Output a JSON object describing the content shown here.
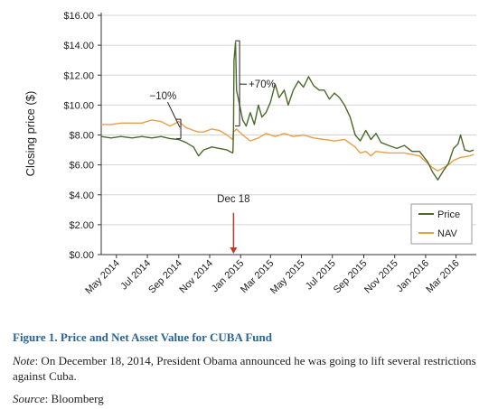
{
  "chart_data": {
    "type": "line",
    "title": "",
    "xlabel": "",
    "ylabel": "Closing price ($)",
    "ylim": [
      0,
      16
    ],
    "grid": "horizontal",
    "legend_position": "lower-right",
    "y_ticks": [
      "$0.00",
      "$2.00",
      "$4.00",
      "$6.00",
      "$8.00",
      "$10.00",
      "$12.00",
      "$14.00",
      "$16.00"
    ],
    "x_ticks": [
      {
        "label": "May 2014",
        "x": "2014-05-01"
      },
      {
        "label": "Jul 2014",
        "x": "2014-07-01"
      },
      {
        "label": "Sep 2014",
        "x": "2014-09-01"
      },
      {
        "label": "Nov 2014",
        "x": "2014-11-01"
      },
      {
        "label": "Jan 2015",
        "x": "2015-01-01"
      },
      {
        "label": "Mar 2015",
        "x": "2015-03-01"
      },
      {
        "label": "May 2015",
        "x": "2015-05-01"
      },
      {
        "label": "Jul 2015",
        "x": "2015-07-01"
      },
      {
        "label": "Sep 2015",
        "x": "2015-09-01"
      },
      {
        "label": "Nov 2015",
        "x": "2015-11-01"
      },
      {
        "label": "Jan 2016",
        "x": "2016-01-01"
      },
      {
        "label": "Mar 2016",
        "x": "2016-03-01"
      }
    ],
    "x_range": [
      "2014-04-01",
      "2016-04-10"
    ],
    "series": [
      {
        "name": "Price",
        "color": "#4a6a2c",
        "points": [
          [
            "2014-04-01",
            7.9
          ],
          [
            "2014-04-20",
            7.8
          ],
          [
            "2014-05-10",
            7.9
          ],
          [
            "2014-06-01",
            7.8
          ],
          [
            "2014-06-20",
            7.9
          ],
          [
            "2014-07-10",
            7.8
          ],
          [
            "2014-07-28",
            7.9
          ],
          [
            "2014-08-15",
            7.75
          ],
          [
            "2014-09-01",
            7.7
          ],
          [
            "2014-09-15",
            7.5
          ],
          [
            "2014-09-30",
            7.2
          ],
          [
            "2014-10-10",
            6.6
          ],
          [
            "2014-10-20",
            7.0
          ],
          [
            "2014-11-05",
            7.2
          ],
          [
            "2014-11-20",
            7.1
          ],
          [
            "2014-12-05",
            7.0
          ],
          [
            "2014-12-16",
            6.8
          ],
          [
            "2014-12-17",
            6.9
          ],
          [
            "2014-12-18",
            8.5
          ],
          [
            "2014-12-19",
            13.0
          ],
          [
            "2014-12-22",
            14.2
          ],
          [
            "2014-12-24",
            11.0
          ],
          [
            "2014-12-30",
            10.0
          ],
          [
            "2015-01-05",
            9.0
          ],
          [
            "2015-01-12",
            8.6
          ],
          [
            "2015-01-20",
            9.5
          ],
          [
            "2015-01-28",
            8.7
          ],
          [
            "2015-02-05",
            10.0
          ],
          [
            "2015-02-12",
            9.2
          ],
          [
            "2015-02-20",
            9.5
          ],
          [
            "2015-03-01",
            10.2
          ],
          [
            "2015-03-10",
            11.4
          ],
          [
            "2015-03-18",
            10.5
          ],
          [
            "2015-03-28",
            11.0
          ],
          [
            "2015-04-05",
            10.0
          ],
          [
            "2015-04-15",
            11.0
          ],
          [
            "2015-04-25",
            11.6
          ],
          [
            "2015-05-05",
            11.2
          ],
          [
            "2015-05-15",
            11.9
          ],
          [
            "2015-05-25",
            11.3
          ],
          [
            "2015-06-05",
            11.0
          ],
          [
            "2015-06-15",
            11.0
          ],
          [
            "2015-06-25",
            10.4
          ],
          [
            "2015-07-05",
            10.8
          ],
          [
            "2015-07-15",
            10.5
          ],
          [
            "2015-07-25",
            10.0
          ],
          [
            "2015-08-05",
            9.2
          ],
          [
            "2015-08-15",
            8.0
          ],
          [
            "2015-08-25",
            7.6
          ],
          [
            "2015-09-05",
            8.3
          ],
          [
            "2015-09-15",
            7.7
          ],
          [
            "2015-09-25",
            8.1
          ],
          [
            "2015-10-05",
            7.5
          ],
          [
            "2015-10-20",
            7.3
          ],
          [
            "2015-11-05",
            7.1
          ],
          [
            "2015-11-20",
            7.3
          ],
          [
            "2015-12-05",
            6.9
          ],
          [
            "2015-12-20",
            6.9
          ],
          [
            "2016-01-05",
            6.2
          ],
          [
            "2016-01-15",
            5.5
          ],
          [
            "2016-01-25",
            5.0
          ],
          [
            "2016-02-05",
            5.6
          ],
          [
            "2016-02-15",
            6.1
          ],
          [
            "2016-02-25",
            7.1
          ],
          [
            "2016-03-05",
            7.4
          ],
          [
            "2016-03-10",
            8.0
          ],
          [
            "2016-03-18",
            7.0
          ],
          [
            "2016-03-28",
            6.9
          ],
          [
            "2016-04-05",
            7.0
          ]
        ]
      },
      {
        "name": "NAV",
        "color": "#e8a04a",
        "points": [
          [
            "2014-04-01",
            8.7
          ],
          [
            "2014-04-20",
            8.7
          ],
          [
            "2014-05-10",
            8.8
          ],
          [
            "2014-06-01",
            8.8
          ],
          [
            "2014-06-20",
            8.8
          ],
          [
            "2014-07-10",
            9.0
          ],
          [
            "2014-07-28",
            8.9
          ],
          [
            "2014-08-15",
            8.6
          ],
          [
            "2014-09-01",
            8.9
          ],
          [
            "2014-09-15",
            8.5
          ],
          [
            "2014-09-30",
            8.3
          ],
          [
            "2014-10-10",
            8.2
          ],
          [
            "2014-10-20",
            8.2
          ],
          [
            "2014-11-05",
            8.4
          ],
          [
            "2014-11-20",
            8.3
          ],
          [
            "2014-12-05",
            8.0
          ],
          [
            "2014-12-16",
            7.7
          ],
          [
            "2014-12-18",
            8.2
          ],
          [
            "2014-12-24",
            8.4
          ],
          [
            "2015-01-05",
            8.0
          ],
          [
            "2015-01-20",
            7.6
          ],
          [
            "2015-02-05",
            7.8
          ],
          [
            "2015-02-20",
            8.1
          ],
          [
            "2015-03-10",
            7.9
          ],
          [
            "2015-03-28",
            8.1
          ],
          [
            "2015-04-15",
            7.9
          ],
          [
            "2015-05-05",
            8.0
          ],
          [
            "2015-05-25",
            7.8
          ],
          [
            "2015-06-15",
            7.7
          ],
          [
            "2015-07-05",
            7.6
          ],
          [
            "2015-07-25",
            7.7
          ],
          [
            "2015-08-15",
            7.2
          ],
          [
            "2015-08-25",
            6.8
          ],
          [
            "2015-09-05",
            6.9
          ],
          [
            "2015-09-15",
            6.6
          ],
          [
            "2015-09-25",
            6.9
          ],
          [
            "2015-10-20",
            6.8
          ],
          [
            "2015-11-20",
            6.8
          ],
          [
            "2015-12-20",
            6.6
          ],
          [
            "2016-01-05",
            6.1
          ],
          [
            "2016-01-15",
            5.8
          ],
          [
            "2016-01-25",
            5.6
          ],
          [
            "2016-02-05",
            5.8
          ],
          [
            "2016-02-15",
            6.0
          ],
          [
            "2016-02-25",
            6.3
          ],
          [
            "2016-03-10",
            6.5
          ],
          [
            "2016-03-28",
            6.6
          ],
          [
            "2016-04-05",
            6.7
          ]
        ]
      }
    ],
    "annotations": [
      {
        "text": "−10%",
        "x": "2014-08-01",
        "y": 10.4
      },
      {
        "text": "+70%",
        "x": "2015-01-25",
        "y": 11.4
      },
      {
        "text": "Dec 18",
        "x": "2014-12-18",
        "y": 3.5
      }
    ]
  },
  "caption": {
    "title": "Figure 1. Price and Net Asset Value for CUBA Fund",
    "note_label": "Note",
    "note_text": ": On December 18, 2014, President Obama announced he was going to lift several restrictions against Cuba.",
    "source_label": "Source",
    "source_text": ": Bloomberg"
  }
}
